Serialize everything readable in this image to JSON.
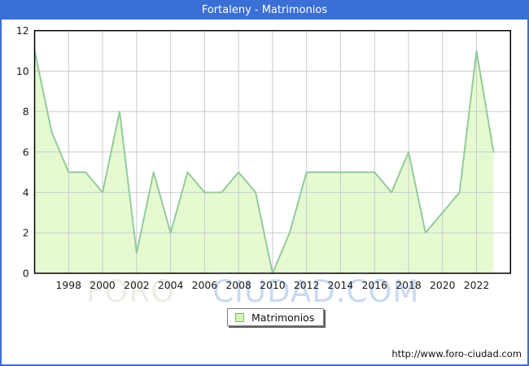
{
  "title_bar": {
    "text": "Fortaleny - Matrimonios"
  },
  "watermark": {
    "left": "FORO",
    "right": "CIUDAD.COM"
  },
  "legend": {
    "label": "Matrimonios"
  },
  "footer": {
    "url": "http://www.foro-ciudad.com"
  },
  "chart_data": {
    "type": "area",
    "title": "Fortaleny - Matrimonios",
    "xlabel": "",
    "ylabel": "",
    "series": [
      {
        "name": "Matrimonios",
        "x": [
          1996,
          1997,
          1998,
          1999,
          2000,
          2001,
          2002,
          2003,
          2004,
          2005,
          2006,
          2007,
          2008,
          2009,
          2010,
          2011,
          2012,
          2013,
          2014,
          2015,
          2016,
          2017,
          2018,
          2019,
          2020,
          2021,
          2022,
          2023
        ],
        "values": [
          11,
          7,
          5,
          5,
          4,
          8,
          1,
          5,
          2,
          5,
          4,
          4,
          5,
          4,
          0,
          2,
          5,
          5,
          5,
          5,
          5,
          4,
          6,
          2,
          3,
          4,
          11,
          6
        ]
      }
    ],
    "xlim": [
      1996,
      2024
    ],
    "ylim": [
      0,
      12
    ],
    "xticks": [
      1998,
      2000,
      2002,
      2004,
      2006,
      2008,
      2010,
      2012,
      2014,
      2016,
      2018,
      2020,
      2022
    ],
    "yticks": [
      0,
      2,
      4,
      6,
      8,
      10,
      12
    ],
    "grid": true,
    "legend_position": "bottom-center",
    "colors": {
      "frame_and_title_bg": "#3a6fd5",
      "title_text": "#ffffff",
      "line": "#92cb9b",
      "fill": "#e6fad2",
      "grid": "#c9c9c9",
      "plot_border": "#000000",
      "axis_text": "#1a1a1a",
      "legend_swatch_fill": "#d8f4b4",
      "legend_swatch_border": "#76b976",
      "watermark_left": "#e9efe4",
      "watermark_right": "#c9d9f2"
    }
  }
}
